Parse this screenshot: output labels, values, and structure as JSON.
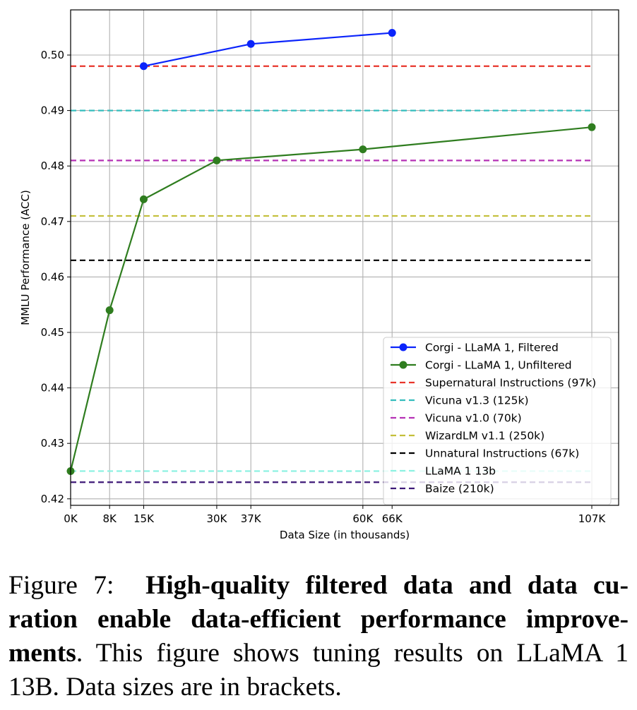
{
  "chart_data": {
    "type": "line",
    "xlabel": "Data Size (in thousands)",
    "ylabel": "MMLU Performance (ACC)",
    "xlim": [
      0,
      107
    ],
    "ylim": [
      0.419,
      0.508
    ],
    "x_ticks": [
      {
        "value": 0,
        "label": "0K"
      },
      {
        "value": 8,
        "label": "8K"
      },
      {
        "value": 15,
        "label": "15K"
      },
      {
        "value": 30,
        "label": "30K"
      },
      {
        "value": 37,
        "label": "37K"
      },
      {
        "value": 60,
        "label": "60K"
      },
      {
        "value": 66,
        "label": "66K"
      },
      {
        "value": 107,
        "label": "107K"
      }
    ],
    "y_ticks": [
      {
        "value": 0.42,
        "label": "0.42"
      },
      {
        "value": 0.43,
        "label": "0.43"
      },
      {
        "value": 0.44,
        "label": "0.44"
      },
      {
        "value": 0.45,
        "label": "0.45"
      },
      {
        "value": 0.46,
        "label": "0.46"
      },
      {
        "value": 0.47,
        "label": "0.47"
      },
      {
        "value": 0.48,
        "label": "0.48"
      },
      {
        "value": 0.49,
        "label": "0.49"
      },
      {
        "value": 0.5,
        "label": "0.50"
      }
    ],
    "grid": true,
    "legend_position": "lower-right",
    "series": [
      {
        "name": "Corgi - LLaMA 1, Filtered",
        "style": "line-marker",
        "color": "#0b24fb",
        "x": [
          15,
          37,
          66
        ],
        "y": [
          0.498,
          0.502,
          0.504
        ]
      },
      {
        "name": "Corgi - LLaMA 1, Unfiltered",
        "style": "line-marker",
        "color": "#2f7d1f",
        "x": [
          0,
          8,
          15,
          30,
          60,
          107
        ],
        "y": [
          0.425,
          0.454,
          0.474,
          0.481,
          0.483,
          0.487
        ]
      }
    ],
    "baselines": [
      {
        "name": "Supernatural Instructions (97k)",
        "y": 0.498,
        "color": "#e8352b"
      },
      {
        "name": "Vicuna v1.3 (125k)",
        "y": 0.49,
        "color": "#34bdbd"
      },
      {
        "name": "Vicuna v1.0 (70k)",
        "y": 0.481,
        "color": "#b531b5"
      },
      {
        "name": "WizardLM v1.1 (250k)",
        "y": 0.471,
        "color": "#c4bf3a"
      },
      {
        "name": "Unnatural Instructions (67k)",
        "y": 0.463,
        "color": "#000000"
      },
      {
        "name": "LLaMA 1 13b",
        "y": 0.425,
        "color": "#8ef2e2"
      },
      {
        "name": "Baize (210k)",
        "y": 0.423,
        "color": "#3e1a78"
      }
    ]
  },
  "caption": {
    "label": "Figure 7:",
    "bold_line1": "High-quality filtered data and data cu-",
    "bold_line2": "ration enable data-efficient performance improve-",
    "bold_line3": "ments",
    "text_line3": ". This figure shows tuning results on LLaMA 1",
    "text_line4": "13B. Data sizes are in brackets."
  }
}
